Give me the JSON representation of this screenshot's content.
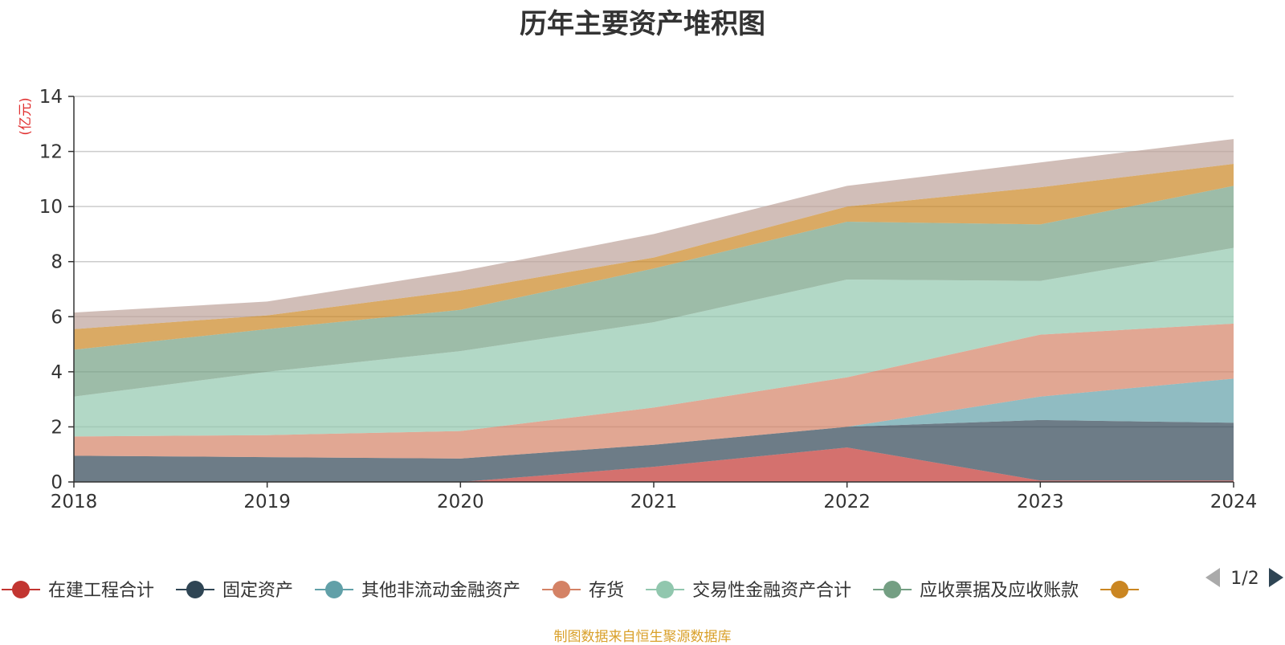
{
  "chart_data": {
    "type": "area",
    "stacked": true,
    "title": "历年主要资产堆积图",
    "ylabel": "(亿元)",
    "xlabel": "",
    "x": [
      "2018",
      "2019",
      "2020",
      "2021",
      "2022",
      "2023",
      "2024"
    ],
    "ylim": [
      0,
      14
    ],
    "yticks": [
      0,
      2,
      4,
      6,
      8,
      10,
      12,
      14
    ],
    "grid": true,
    "series": [
      {
        "name": "在建工程合计",
        "color": "#c23531",
        "values": [
          0,
          0,
          0,
          0.55,
          1.25,
          0.05,
          0.05
        ]
      },
      {
        "name": "固定资产",
        "color": "#2f4554",
        "values": [
          0.95,
          0.9,
          0.85,
          0.8,
          0.75,
          2.2,
          2.1
        ]
      },
      {
        "name": "其他非流动金融资产",
        "color": "#61a0a8",
        "values": [
          0,
          0,
          0,
          0,
          0,
          0.85,
          1.6
        ]
      },
      {
        "name": "存货",
        "color": "#d48265",
        "values": [
          0.7,
          0.8,
          1.0,
          1.35,
          1.8,
          2.25,
          2.0
        ]
      },
      {
        "name": "交易性金融资产合计",
        "color": "#91c7ae",
        "values": [
          1.45,
          2.3,
          2.9,
          3.1,
          3.55,
          1.95,
          2.75
        ]
      },
      {
        "name": "应收票据及应收账款",
        "color": "#749f83",
        "values": [
          1.7,
          1.55,
          1.5,
          1.95,
          2.1,
          2.05,
          2.25
        ]
      },
      {
        "name": "",
        "color": "#ca8622",
        "values": [
          0.75,
          0.5,
          0.7,
          0.4,
          0.55,
          1.35,
          0.8
        ]
      },
      {
        "name": "",
        "color": "#bda29a",
        "values": [
          0.6,
          0.5,
          0.7,
          0.85,
          0.75,
          0.9,
          0.9
        ]
      }
    ]
  },
  "legend": {
    "page_label": "1/2",
    "items": [
      {
        "name": "在建工程合计",
        "color": "#c23531"
      },
      {
        "name": "固定资产",
        "color": "#2f4554"
      },
      {
        "name": "其他非流动金融资产",
        "color": "#61a0a8"
      },
      {
        "name": "存货",
        "color": "#d48265"
      },
      {
        "name": "交易性金融资产合计",
        "color": "#91c7ae"
      },
      {
        "name": "应收票据及应收账款",
        "color": "#749f83"
      },
      {
        "name": "",
        "color": "#ca8622"
      }
    ]
  },
  "source_note": "制图数据来自恒生聚源数据库"
}
